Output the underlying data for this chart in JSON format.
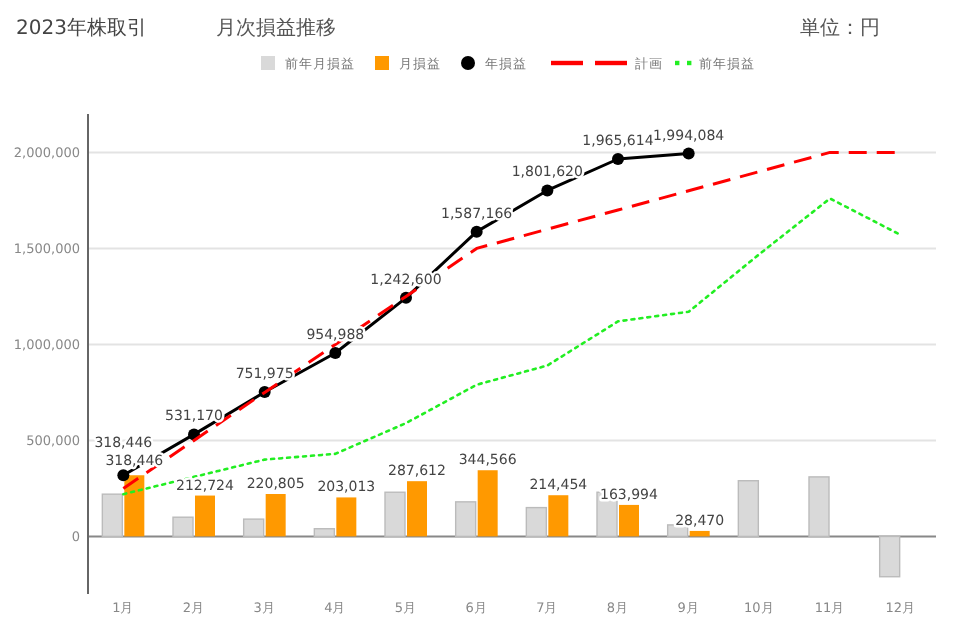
{
  "chart_data": {
    "type": "bar",
    "title": "2023年株取引",
    "subtitle": "月次損益推移",
    "annotations": [
      "単位：円"
    ],
    "categories": [
      "1月",
      "2月",
      "3月",
      "4月",
      "5月",
      "6月",
      "7月",
      "8月",
      "9月",
      "10月",
      "11月",
      "12月"
    ],
    "series": [
      {
        "name": "前年月損益",
        "type": "bar",
        "color": "#d9d9d9",
        "values": [
          220000,
          100000,
          90000,
          40000,
          230000,
          180000,
          150000,
          230000,
          60000,
          290000,
          310000,
          -210000
        ]
      },
      {
        "name": "月損益",
        "type": "bar",
        "color": "#ff9900",
        "values": [
          318446,
          212724,
          220805,
          203013,
          287612,
          344566,
          214454,
          163994,
          28470,
          null,
          null,
          null
        ],
        "value_labels": [
          "318,446",
          "212,724",
          "220,805",
          "203,013",
          "287,612",
          "344,566",
          "214,454",
          "163,994",
          "28,470",
          null,
          null,
          null
        ]
      },
      {
        "name": "年損益",
        "type": "line",
        "color": "#000000",
        "marker": "circle",
        "values": [
          318446,
          531170,
          751975,
          954988,
          1242600,
          1587166,
          1801620,
          1965614,
          1994084,
          null,
          null,
          null
        ],
        "value_labels": [
          "318,446",
          "531,170",
          "751,975",
          "954,988",
          "1,242,600",
          "1,587,166",
          "1,801,620",
          "1,965,614",
          "1,994,084",
          null,
          null,
          null
        ]
      },
      {
        "name": "計画",
        "type": "line",
        "color": "#ff0000",
        "line_style": "dashed",
        "values": [
          250000,
          500000,
          750000,
          1000000,
          1250000,
          1500000,
          1600000,
          1700000,
          1800000,
          1900000,
          2000000,
          2000000
        ]
      },
      {
        "name": "前年損益",
        "type": "line",
        "color": "#22ee22",
        "line_style": "dotted",
        "values": [
          220000,
          310000,
          400000,
          430000,
          590000,
          790000,
          890000,
          1120000,
          1170000,
          1470000,
          1760000,
          1570000
        ]
      }
    ],
    "ylim": [
      -300000,
      2200000
    ],
    "yticks": [
      {
        "value": 0,
        "label": "0"
      },
      {
        "value": 500000,
        "label": "500,000"
      },
      {
        "value": 1000000,
        "label": "1,000,000"
      },
      {
        "value": 1500000,
        "label": "1,500,000"
      },
      {
        "value": 2000000,
        "label": "2,000,000"
      }
    ],
    "grid": "y",
    "legend": "top"
  }
}
